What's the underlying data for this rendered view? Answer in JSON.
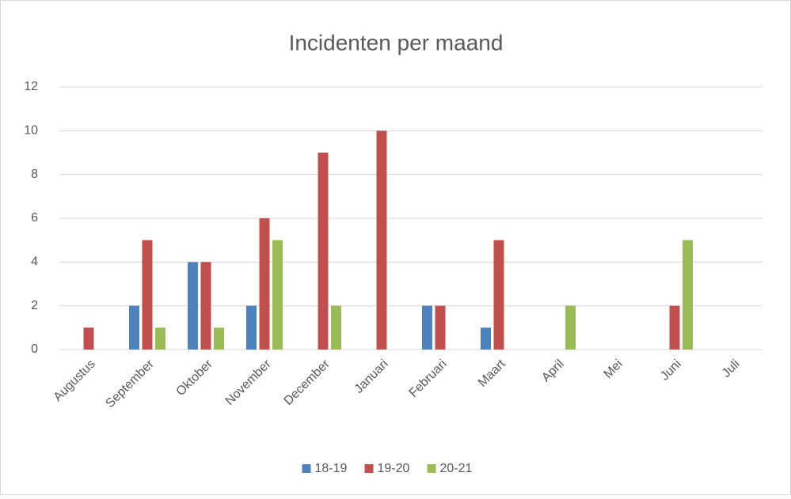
{
  "chart_data": {
    "type": "bar",
    "title": "Incidenten per maand",
    "categories": [
      "Augustus",
      "September",
      "Oktober",
      "November",
      "December",
      "Januari",
      "Februari",
      "Maart",
      "April",
      "Mei",
      "Juni",
      "Juli"
    ],
    "series": [
      {
        "name": "18-19",
        "color": "#4f81bd",
        "values": [
          0,
          2,
          4,
          2,
          0,
          0,
          2,
          1,
          0,
          0,
          0,
          0
        ]
      },
      {
        "name": "19-20",
        "color": "#c0504d",
        "values": [
          1,
          5,
          4,
          6,
          9,
          10,
          2,
          5,
          0,
          0,
          2,
          0
        ]
      },
      {
        "name": "20-21",
        "color": "#9bbb59",
        "values": [
          0,
          1,
          1,
          5,
          2,
          0,
          0,
          0,
          2,
          0,
          5,
          0
        ]
      }
    ],
    "ylim": [
      0,
      12
    ],
    "yticks": [
      0,
      2,
      4,
      6,
      8,
      10,
      12
    ],
    "grid": true,
    "legend": "bottom"
  }
}
